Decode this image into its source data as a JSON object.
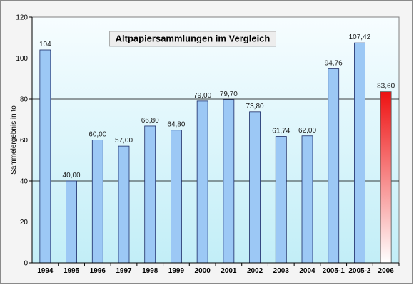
{
  "chart_data": {
    "type": "bar",
    "title": "Altpapiersammlungen im Vergleich",
    "ylabel": "Sammelergebnis in to",
    "xlabel": "",
    "ylim": [
      0,
      120
    ],
    "yticks": [
      0,
      20,
      40,
      60,
      80,
      100,
      120
    ],
    "grid": true,
    "categories": [
      "1994",
      "1995",
      "1996",
      "1997",
      "1998",
      "1999",
      "2000",
      "2001",
      "2002",
      "2003",
      "2004",
      "2005-1",
      "2005-2",
      "2006"
    ],
    "values": [
      104,
      40.0,
      60.0,
      57.0,
      66.8,
      64.8,
      79.0,
      79.7,
      73.8,
      61.74,
      62.0,
      94.76,
      107.42,
      83.6
    ],
    "value_labels": [
      "104",
      "40,00",
      "60,00",
      "57,00",
      "66,80",
      "64,80",
      "79,00",
      "79,70",
      "73,80",
      "61,74",
      "62,00",
      "94,76",
      "107,42",
      "83,60"
    ],
    "colors": {
      "bar": "#9cc8f5",
      "bar_stroke": "#1c2b66",
      "highlight_top": "#ee1111",
      "highlight_bottom": "#ffffff",
      "plot_top": "#f7fdff",
      "plot_bottom": "#c2eef7"
    },
    "highlight_index": 13
  }
}
